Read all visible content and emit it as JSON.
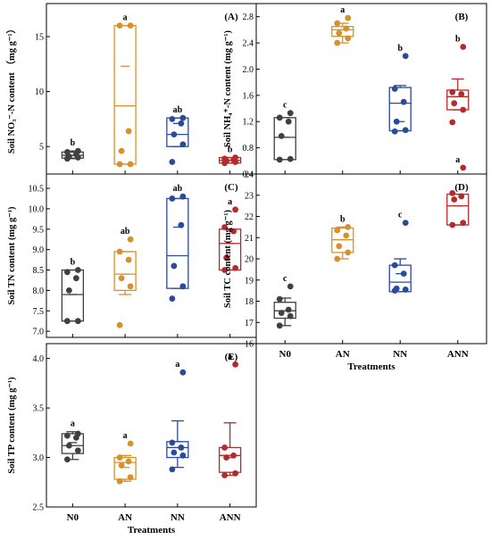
{
  "figure": {
    "categories": [
      "N0",
      "AN",
      "NN",
      "ANN"
    ],
    "colors": [
      "#404040",
      "#d4922e",
      "#2a4a9a",
      "#b52a2a"
    ],
    "xlabel": "Treatments"
  },
  "chart_data": [
    {
      "type": "box",
      "panel": "(A)",
      "title": "(A)",
      "ylabel": "Soil NO₃⁻-N content （mg g⁻¹）",
      "ylim": [
        2.5,
        18.0
      ],
      "yticks": [
        "5",
        "10",
        "15"
      ],
      "categories": [
        "N0",
        "AN",
        "NN",
        "ANN"
      ],
      "series": [
        {
          "name": "N0",
          "points": [
            3.9,
            4.0,
            4.1,
            4.3,
            4.5,
            4.6
          ],
          "q1": 3.95,
          "median": 4.2,
          "q3": 4.5,
          "mean": 4.2,
          "whisker_low": 3.9,
          "whisker_high": 4.6,
          "letter": "b"
        },
        {
          "name": "AN",
          "points": [
            3.4,
            3.4,
            4.6,
            6.4,
            16.0,
            16.0
          ],
          "q1": 3.4,
          "median": 8.7,
          "q3": 16.0,
          "mean": 12.3,
          "whisker_low": 3.4,
          "whisker_high": 16.0,
          "letter": "a"
        },
        {
          "name": "NN",
          "points": [
            3.6,
            5.2,
            6.1,
            7.1,
            7.5,
            7.6
          ],
          "q1": 5.0,
          "median": 6.1,
          "q3": 7.6,
          "mean": 7.1,
          "whisker_low": 5.0,
          "whisker_high": 7.6,
          "letter": "ab"
        },
        {
          "name": "ANN",
          "points": [
            3.5,
            3.6,
            3.7,
            3.8,
            3.9,
            4.0
          ],
          "q1": 3.5,
          "median": 3.75,
          "q3": 4.0,
          "mean": 3.75,
          "whisker_low": 3.5,
          "whisker_high": 4.0,
          "letter": "b"
        }
      ]
    },
    {
      "type": "box",
      "panel": "(B)",
      "title": "(B)",
      "ylabel": "Soil NH₄⁺-N content (mg g⁻¹)",
      "ylim": [
        0.4,
        3.0
      ],
      "yticks": [
        "0.4",
        "0.8",
        "1.2",
        "1.6",
        "2.0",
        "2.4",
        "2.8"
      ],
      "categories": [
        "N0",
        "AN",
        "NN",
        "ANN"
      ],
      "series": [
        {
          "name": "N0",
          "points": [
            0.62,
            0.63,
            0.98,
            1.2,
            1.26,
            1.33
          ],
          "q1": 0.62,
          "median": 0.96,
          "q3": 1.26,
          "mean": 0.96,
          "whisker_low": 0.62,
          "whisker_high": 1.26,
          "letter": "c"
        },
        {
          "name": "AN",
          "points": [
            2.4,
            2.47,
            2.55,
            2.62,
            2.7,
            2.78
          ],
          "q1": 2.5,
          "median": 2.6,
          "q3": 2.65,
          "mean": 2.6,
          "whisker_low": 2.4,
          "whisker_high": 2.7,
          "letter": "a"
        },
        {
          "name": "NN",
          "points": [
            1.05,
            1.07,
            1.2,
            1.5,
            1.7,
            2.2
          ],
          "q1": 1.06,
          "median": 1.48,
          "q3": 1.72,
          "mean": 1.2,
          "whisker_low": 1.06,
          "whisker_high": 1.75,
          "letter": "b"
        },
        {
          "name": "ANN",
          "points": [
            1.19,
            1.38,
            1.48,
            1.62,
            1.65,
            2.34
          ],
          "q1": 1.38,
          "median": 1.58,
          "q3": 1.68,
          "mean": 1.58,
          "whisker_low": 1.38,
          "whisker_high": 1.85,
          "letter": "b"
        }
      ]
    },
    {
      "type": "box",
      "panel": "(C)",
      "title": "(C)",
      "ylabel": "Soil TN content (mg g⁻¹)",
      "ylim": [
        6.85,
        10.85
      ],
      "yticks": [
        "7.0",
        "7.5",
        "8.0",
        "8.5",
        "9.0",
        "9.5",
        "10.0",
        "10.5"
      ],
      "categories": [
        "N0",
        "AN",
        "NN",
        "ANN"
      ],
      "series": [
        {
          "name": "N0",
          "points": [
            7.25,
            7.25,
            8.0,
            8.3,
            8.45,
            8.5
          ],
          "q1": 7.25,
          "median": 7.9,
          "q3": 8.5,
          "mean": 7.9,
          "whisker_low": 7.25,
          "whisker_high": 8.5,
          "letter": "b"
        },
        {
          "name": "AN",
          "points": [
            7.15,
            8.1,
            8.3,
            8.75,
            8.95,
            9.25
          ],
          "q1": 8.0,
          "median": 8.4,
          "q3": 8.95,
          "mean": 8.4,
          "whisker_low": 7.9,
          "whisker_high": 8.95,
          "letter": "ab"
        },
        {
          "name": "NN",
          "points": [
            7.8,
            8.1,
            8.6,
            9.6,
            10.25,
            10.3
          ],
          "q1": 8.05,
          "median": 8.85,
          "q3": 10.25,
          "mean": 9.55,
          "whisker_low": 8.05,
          "whisker_high": 10.25,
          "letter": "ab"
        },
        {
          "name": "ANN",
          "points": [
            8.5,
            8.55,
            8.8,
            9.45,
            9.55,
            9.98
          ],
          "q1": 8.5,
          "median": 9.15,
          "q3": 9.5,
          "mean": 9.15,
          "whisker_low": 8.5,
          "whisker_high": 9.5,
          "letter": "a"
        }
      ]
    },
    {
      "type": "box",
      "panel": "(D)",
      "title": "(D)",
      "ylabel": "Soil TC content (mg g⁻¹)",
      "ylim": [
        16.0,
        24.0
      ],
      "yticks": [
        "16",
        "17",
        "18",
        "19",
        "20",
        "21",
        "22",
        "23",
        "24"
      ],
      "categories": [
        "N0",
        "AN",
        "NN",
        "ANN"
      ],
      "series": [
        {
          "name": "N0",
          "points": [
            16.85,
            17.3,
            17.45,
            17.6,
            18.1,
            18.7
          ],
          "q1": 17.2,
          "median": 17.55,
          "q3": 17.95,
          "mean": 17.55,
          "whisker_low": 16.85,
          "whisker_high": 18.15,
          "letter": "c"
        },
        {
          "name": "AN",
          "points": [
            20.0,
            20.3,
            20.6,
            21.1,
            21.35,
            21.5
          ],
          "q1": 20.3,
          "median": 20.9,
          "q3": 21.45,
          "mean": 20.9,
          "whisker_low": 20.0,
          "whisker_high": 21.5,
          "letter": "b"
        },
        {
          "name": "NN",
          "points": [
            18.5,
            18.55,
            18.6,
            19.3,
            19.7,
            21.7
          ],
          "q1": 18.45,
          "median": 18.9,
          "q3": 19.7,
          "mean": 19.3,
          "whisker_low": 18.45,
          "whisker_high": 20.0,
          "letter": "c"
        },
        {
          "name": "ANN",
          "points": [
            21.6,
            21.7,
            22.8,
            22.95,
            23.1,
            24.3
          ],
          "q1": 21.6,
          "median": 22.5,
          "q3": 23.05,
          "mean": 22.5,
          "whisker_low": 21.6,
          "whisker_high": 23.05,
          "letter": "a"
        }
      ]
    },
    {
      "type": "box",
      "panel": "(E)",
      "title": "(E)",
      "ylabel": "Soil TP content (mg g⁻¹)",
      "ylim": [
        2.5,
        4.15
      ],
      "yticks": [
        "2.5",
        "3.0",
        "3.5",
        "4.0"
      ],
      "categories": [
        "N0",
        "AN",
        "NN",
        "ANN"
      ],
      "series": [
        {
          "name": "N0",
          "points": [
            2.98,
            3.07,
            3.12,
            3.2,
            3.22,
            3.24
          ],
          "q1": 3.04,
          "median": 3.12,
          "q3": 3.24,
          "mean": 3.15,
          "whisker_low": 2.98,
          "whisker_high": 3.26,
          "letter": "a"
        },
        {
          "name": "AN",
          "points": [
            2.76,
            2.8,
            2.92,
            2.96,
            3.0,
            3.14
          ],
          "q1": 2.78,
          "median": 2.95,
          "q3": 3.0,
          "mean": 2.9,
          "whisker_low": 2.76,
          "whisker_high": 3.02,
          "letter": "a"
        },
        {
          "name": "NN",
          "points": [
            2.88,
            3.02,
            3.05,
            3.1,
            3.15,
            3.86
          ],
          "q1": 3.0,
          "median": 3.1,
          "q3": 3.16,
          "mean": 3.16,
          "whisker_low": 2.9,
          "whisker_high": 3.37,
          "letter": "a"
        },
        {
          "name": "ANN",
          "points": [
            2.82,
            2.84,
            3.0,
            3.02,
            3.1,
            3.94
          ],
          "q1": 2.85,
          "median": 3.02,
          "q3": 3.1,
          "mean": 3.0,
          "whisker_low": 2.82,
          "whisker_high": 3.35,
          "letter": "a"
        }
      ]
    }
  ]
}
